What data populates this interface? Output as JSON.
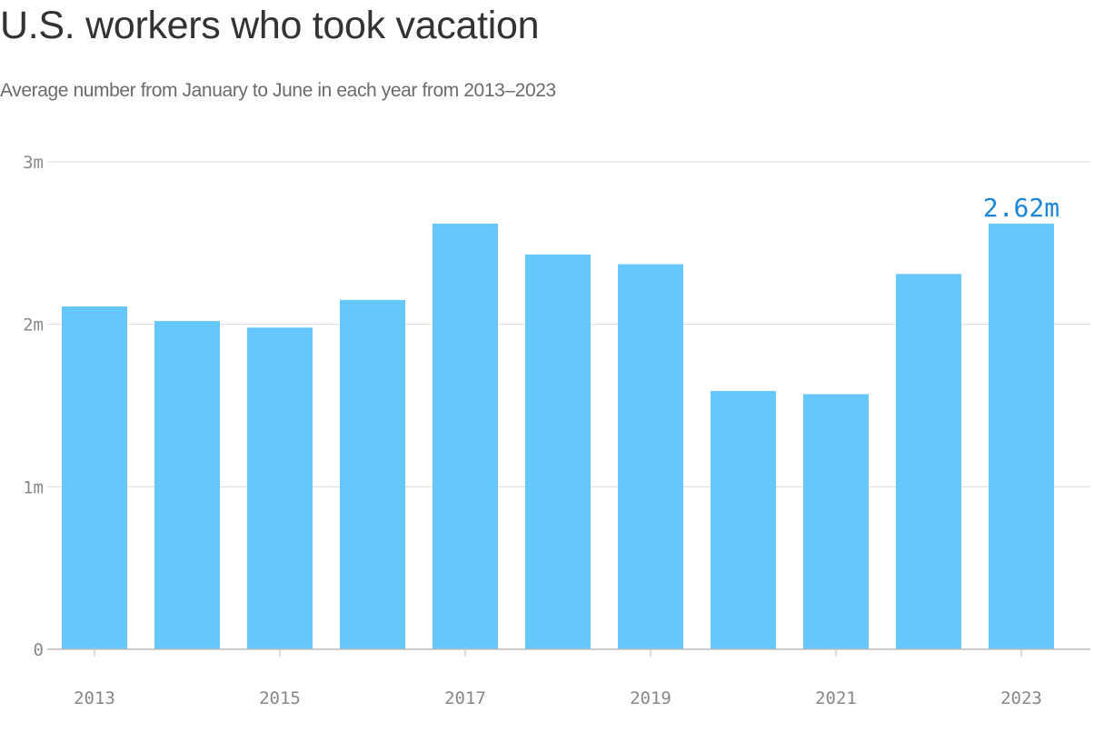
{
  "title": "U.S. workers who took vacation",
  "subtitle": "Average number from January to June in each year from 2013–2023",
  "colors": {
    "bar": "#66c7fc",
    "highlight_label": "#1a86d8",
    "grid": "#dddddd",
    "axis": "#bbbbbb",
    "tick_text": "#888888",
    "title": "#333333",
    "subtitle": "#6b6b6b"
  },
  "chart_data": {
    "type": "bar",
    "title": "U.S. workers who took vacation",
    "subtitle": "Average number from January to June in each year from 2013–2023",
    "xlabel": "",
    "ylabel": "",
    "categories": [
      "2013",
      "2014",
      "2015",
      "2016",
      "2017",
      "2018",
      "2019",
      "2020",
      "2021",
      "2022",
      "2023"
    ],
    "values": [
      2.11,
      2.02,
      1.98,
      2.15,
      2.62,
      2.43,
      2.37,
      1.59,
      1.57,
      2.31,
      2.62
    ],
    "ylim": [
      0,
      3
    ],
    "y_ticks": [
      {
        "value": 0,
        "label": "0"
      },
      {
        "value": 1,
        "label": "1m"
      },
      {
        "value": 2,
        "label": "2m"
      },
      {
        "value": 3,
        "label": "3m"
      }
    ],
    "x_tick_labels": [
      "2013",
      "2015",
      "2017",
      "2019",
      "2021",
      "2023"
    ],
    "grid": true,
    "annotations": [
      {
        "category": "2023",
        "text": "2.62m"
      }
    ]
  }
}
